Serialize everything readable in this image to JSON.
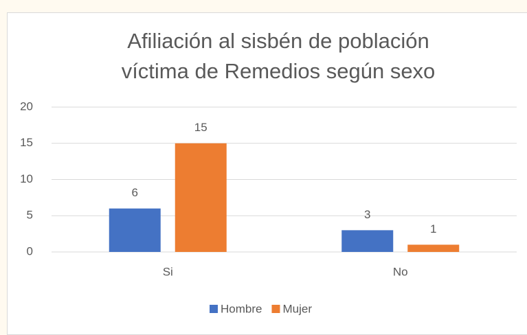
{
  "chart_data": {
    "type": "bar",
    "title": "Afiliación al sisbén de población víctima de Remedios según sexo",
    "categories": [
      "Si",
      "No"
    ],
    "series": [
      {
        "name": "Hombre",
        "color": "#4472c4",
        "values": [
          6,
          3
        ]
      },
      {
        "name": "Mujer",
        "color": "#ed7d31",
        "values": [
          15,
          1
        ]
      }
    ],
    "ylim": [
      0,
      20
    ],
    "yticks": [
      0,
      5,
      10,
      15,
      20
    ],
    "grid": true,
    "legend": "bottom"
  }
}
